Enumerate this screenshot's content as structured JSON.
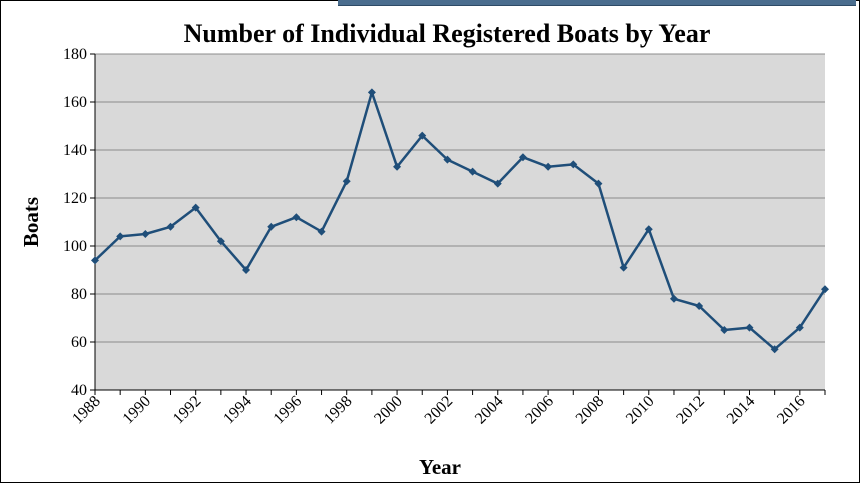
{
  "chart_data": {
    "type": "line",
    "title": "Number of Individual Registered Boats by Year",
    "xlabel": "Year",
    "ylabel": "Boats",
    "x": [
      1988,
      1989,
      1990,
      1991,
      1992,
      1993,
      1994,
      1995,
      1996,
      1997,
      1998,
      1999,
      2000,
      2001,
      2002,
      2003,
      2004,
      2005,
      2006,
      2007,
      2008,
      2009,
      2010,
      2011,
      2012,
      2013,
      2014,
      2015,
      2016,
      2017
    ],
    "series": [
      {
        "values": [
          94,
          104,
          105,
          108,
          116,
          102,
          90,
          108,
          112,
          106,
          127,
          164,
          133,
          146,
          136,
          131,
          126,
          137,
          133,
          134,
          126,
          91,
          107,
          78,
          75,
          65,
          66,
          57,
          66,
          82
        ]
      }
    ],
    "x_tick_labels": [
      "1988",
      "1990",
      "1992",
      "1994",
      "1996",
      "1998",
      "2000",
      "2002",
      "2004",
      "2006",
      "2008",
      "2010",
      "2012",
      "2014",
      "2016"
    ],
    "y_tick_labels": [
      "40",
      "60",
      "80",
      "100",
      "120",
      "140",
      "160",
      "180"
    ],
    "ylim": [
      40,
      180
    ],
    "xlim": [
      1988,
      2017
    ],
    "grid": true,
    "legend": "none",
    "colors": {
      "plot_background": "#d9d9d9",
      "line": "#1f4e79",
      "gridline": "#8c8c8c"
    }
  }
}
